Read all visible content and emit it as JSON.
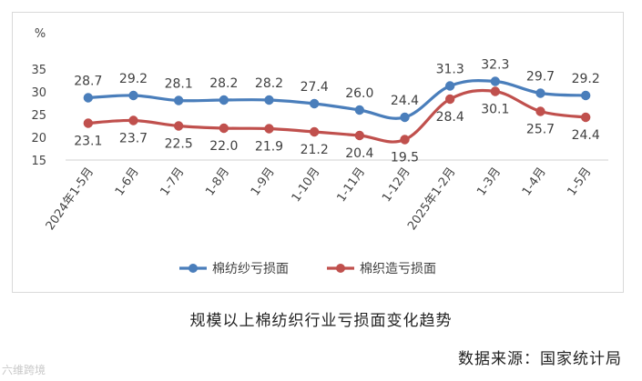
{
  "chart_data": {
    "type": "line",
    "title": "",
    "ylabel": "%",
    "xlabel": "",
    "ylim": [
      15,
      35
    ],
    "yticks": [
      15,
      20,
      25,
      30,
      35
    ],
    "grid": false,
    "legend_position": "bottom",
    "categories": [
      "2024年1-5月",
      "1-6月",
      "1-7月",
      "1-8月",
      "1-9月",
      "1-10月",
      "1-11月",
      "1-12月",
      "2025年1-2月",
      "1-3月",
      "1-4月",
      "1-5月"
    ],
    "series": [
      {
        "name": "棉纺纱亏损面",
        "color": "#4a7ebb",
        "values": [
          28.7,
          29.2,
          28.1,
          28.2,
          28.2,
          27.4,
          26.0,
          24.4,
          31.3,
          32.3,
          29.7,
          29.2
        ],
        "label_position": "above"
      },
      {
        "name": "棉织造亏损面",
        "color": "#c0504d",
        "values": [
          23.1,
          23.7,
          22.5,
          22.0,
          21.9,
          21.2,
          20.4,
          19.5,
          28.4,
          30.1,
          25.7,
          24.4
        ],
        "label_position": "below"
      }
    ]
  },
  "caption": "规模以上棉纺织行业亏损面变化趋势",
  "source": "数据来源：国家统计局",
  "watermark": "六维跨境"
}
